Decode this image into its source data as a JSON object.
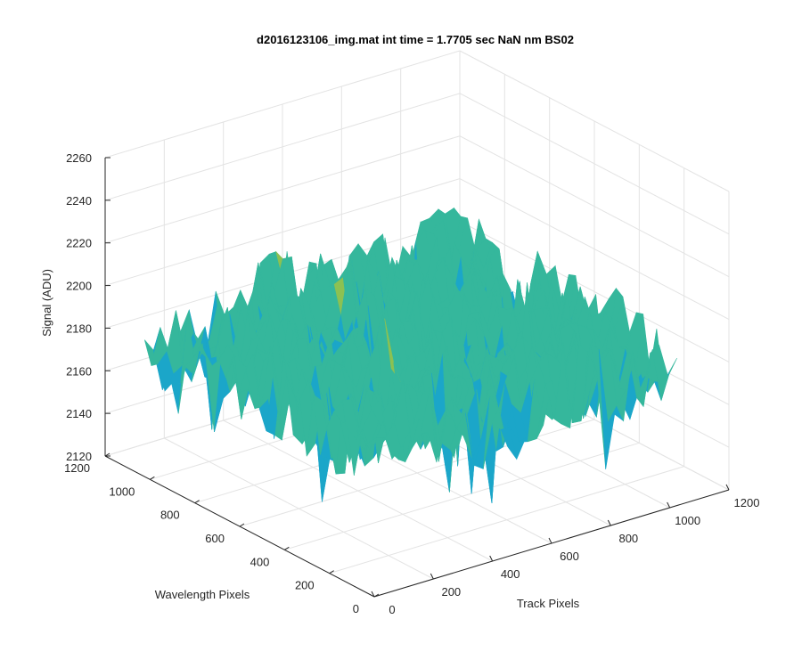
{
  "chart_data": {
    "type": "surface",
    "title": "d2016123106_img.mat int time = 1.7705 sec  NaN nm BS02",
    "xlabel": "Track Pixels",
    "ylabel": "Wavelength Pixels",
    "zlabel": "Signal (ADU)",
    "xlim": [
      0,
      1200
    ],
    "ylim": [
      0,
      1200
    ],
    "zlim": [
      2120,
      2260
    ],
    "x_ticks": [
      "0",
      "200",
      "400",
      "600",
      "800",
      "1000",
      "1200"
    ],
    "y_ticks": [
      "0",
      "200",
      "400",
      "600",
      "800",
      "1000",
      "1200"
    ],
    "z_ticks": [
      "2120",
      "2140",
      "2160",
      "2180",
      "2200",
      "2220",
      "2240",
      "2260"
    ],
    "x_extent": [
      0,
      1024
    ],
    "y_extent": [
      0,
      1024
    ],
    "z_mean": 2185,
    "z_noise_range": [
      2130,
      2250
    ],
    "grid": true,
    "colormap": [
      "#0072bd",
      "#1ba6c9",
      "#35b79c",
      "#8cc152",
      "#e9b73a"
    ]
  }
}
